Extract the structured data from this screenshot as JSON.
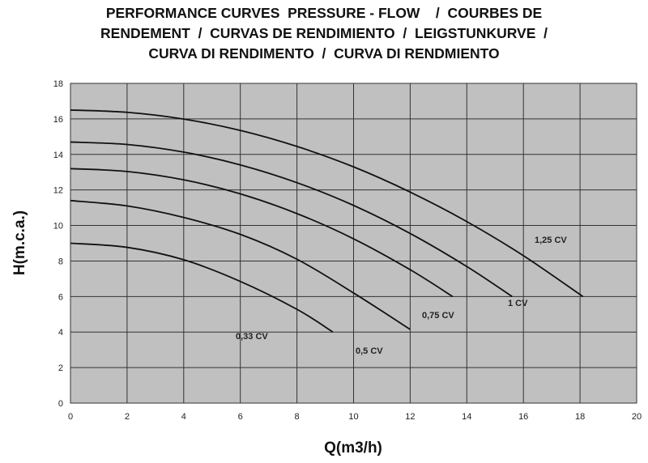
{
  "chart_data": {
    "type": "line",
    "title_lines": [
      "PERFORMANCE CURVES  PRESSURE - FLOW    /  COURBES DE",
      "RENDEMENT  /  CURVAS DE RENDIMIENTO  /  LEIGSTUNKURVE  /",
      "CURVA DI RENDIMENTO  /  CURVA DI RENDMIENTO"
    ],
    "xlabel": "Q(m3/h)",
    "ylabel": "H(m.c.a.)",
    "xlim": [
      0,
      20
    ],
    "ylim": [
      0,
      18
    ],
    "xticks": [
      0,
      2,
      4,
      6,
      8,
      10,
      12,
      14,
      16,
      18,
      20
    ],
    "yticks": [
      0,
      2,
      4,
      6,
      8,
      10,
      12,
      14,
      16,
      18
    ],
    "grid": true,
    "background": "#c0c0c0",
    "line_color": "#111111",
    "series": [
      {
        "name": "1,25 CV",
        "x": [
          0,
          2,
          4,
          6,
          8,
          10,
          12,
          14,
          16,
          18.1
        ],
        "y": [
          16.5,
          16.37,
          15.99,
          15.35,
          14.45,
          13.3,
          11.88,
          10.22,
          8.3,
          6.0
        ]
      },
      {
        "name": "1 CV",
        "x": [
          0,
          2,
          4,
          6,
          8,
          10,
          12,
          14,
          15.6
        ],
        "y": [
          14.7,
          14.56,
          14.13,
          13.41,
          12.41,
          11.13,
          9.55,
          7.69,
          6.0
        ]
      },
      {
        "name": "0,75 CV",
        "x": [
          0,
          2,
          4,
          6,
          8,
          10,
          12,
          13.5
        ],
        "y": [
          13.2,
          13.04,
          12.57,
          11.78,
          10.67,
          9.25,
          7.51,
          6.0
        ]
      },
      {
        "name": "0,5 CV",
        "x": [
          0,
          2,
          4,
          6,
          8,
          10,
          12
        ],
        "y": [
          11.4,
          11.1,
          10.45,
          9.5,
          8.1,
          6.2,
          4.15
        ]
      },
      {
        "name": "0,33 CV",
        "x": [
          0,
          2,
          4,
          6,
          8,
          9.27
        ],
        "y": [
          9.0,
          8.77,
          8.07,
          6.85,
          5.28,
          4.0
        ]
      }
    ]
  }
}
